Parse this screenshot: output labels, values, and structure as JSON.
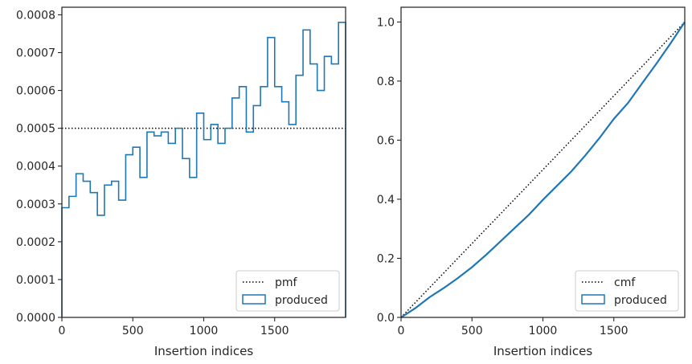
{
  "chart_data": [
    {
      "type": "step",
      "xlabel": "Insertion indices",
      "ylabel": "",
      "title": "",
      "xlim": [
        0,
        2000
      ],
      "ylim": [
        0,
        0.00082
      ],
      "xticks": [
        0,
        500,
        1000,
        1500
      ],
      "xtick_labels": [
        "0",
        "500",
        "1000",
        "1500"
      ],
      "yticks": [
        0,
        0.0001,
        0.0002,
        0.0003,
        0.0004,
        0.0005,
        0.0006,
        0.0007,
        0.0008
      ],
      "ytick_labels": [
        "0.0000",
        "0.0001",
        "0.0002",
        "0.0003",
        "0.0004",
        "0.0005",
        "0.0006",
        "0.0007",
        "0.0008"
      ],
      "grid": false,
      "legend_position": "lower-right",
      "series": [
        {
          "name": "pmf",
          "style": "dotted",
          "color": "#000000",
          "x": [
            0,
            2000
          ],
          "y": [
            0.0005,
            0.0005
          ]
        },
        {
          "name": "produced",
          "style": "step-histogram",
          "color": "#1f77b4",
          "bin_edges": [
            0,
            50,
            100,
            150,
            200,
            250,
            300,
            350,
            400,
            450,
            500,
            550,
            600,
            650,
            700,
            750,
            800,
            850,
            900,
            950,
            1000,
            1050,
            1100,
            1150,
            1200,
            1250,
            1300,
            1350,
            1400,
            1450,
            1500,
            1550,
            1600,
            1650,
            1700,
            1750,
            1800,
            1850,
            1900,
            1950,
            2000
          ],
          "values": [
            0.00029,
            0.00032,
            0.00038,
            0.00036,
            0.00033,
            0.00027,
            0.00035,
            0.00036,
            0.00031,
            0.00043,
            0.00045,
            0.00037,
            0.00049,
            0.00048,
            0.00049,
            0.00046,
            0.0005,
            0.00042,
            0.00037,
            0.00054,
            0.00047,
            0.00051,
            0.00046,
            0.0005,
            0.00058,
            0.00061,
            0.00049,
            0.00056,
            0.00061,
            0.00074,
            0.00061,
            0.00057,
            0.00051,
            0.00064,
            0.00076,
            0.00067,
            0.0006,
            0.00069,
            0.00067,
            0.00078
          ]
        }
      ]
    },
    {
      "type": "line",
      "xlabel": "Insertion indices",
      "ylabel": "",
      "title": "",
      "xlim": [
        0,
        2000
      ],
      "ylim": [
        0,
        1.05
      ],
      "xticks": [
        0,
        500,
        1000,
        1500
      ],
      "xtick_labels": [
        "0",
        "500",
        "1000",
        "1500"
      ],
      "yticks": [
        0,
        0.2,
        0.4,
        0.6,
        0.8,
        1.0
      ],
      "ytick_labels": [
        "0.0",
        "0.2",
        "0.4",
        "0.6",
        "0.8",
        "1.0"
      ],
      "grid": false,
      "legend_position": "lower-right",
      "series": [
        {
          "name": "cmf",
          "style": "dotted",
          "color": "#000000",
          "x": [
            0,
            2000
          ],
          "y": [
            0,
            1.0
          ]
        },
        {
          "name": "produced",
          "style": "solid",
          "color": "#1f77b4",
          "x": [
            0,
            100,
            200,
            300,
            400,
            500,
            600,
            700,
            800,
            900,
            1000,
            1100,
            1200,
            1300,
            1400,
            1500,
            1600,
            1700,
            1800,
            1900,
            2000
          ],
          "y": [
            0,
            0.031,
            0.068,
            0.099,
            0.133,
            0.17,
            0.212,
            0.257,
            0.302,
            0.347,
            0.398,
            0.446,
            0.494,
            0.549,
            0.608,
            0.672,
            0.726,
            0.793,
            0.859,
            0.928,
            1.0
          ]
        }
      ]
    }
  ]
}
